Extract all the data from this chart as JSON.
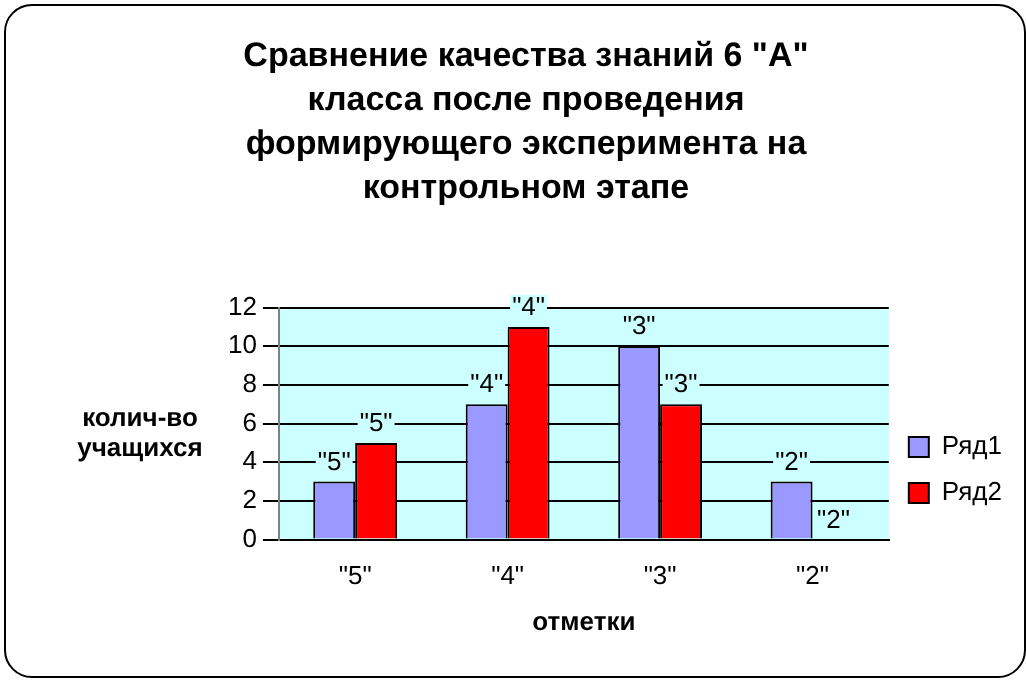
{
  "chart_data": {
    "type": "bar",
    "title": "Сравнение качества знаний 6 \"А\" класса после проведения формирующего эксперимента на контрольном этапе",
    "xlabel": "отметки",
    "ylabel": "колич-во учащихся",
    "categories": [
      "\"5\"",
      "\"4\"",
      "\"3\"",
      "\"2\""
    ],
    "series": [
      {
        "name": "Ряд1",
        "color": "#9999ff",
        "values": [
          3,
          7,
          10,
          3
        ]
      },
      {
        "name": "Ряд2",
        "color": "#ff0000",
        "values": [
          5,
          11,
          7,
          0
        ]
      }
    ],
    "annotations": [
      {
        "text": "\"5\"",
        "x": "\"5\"",
        "y": 3
      },
      {
        "text": "\"4\"",
        "x": "\"4\"",
        "y": 7
      },
      {
        "text": "\"3\"",
        "x": "\"3\"",
        "y": 10
      },
      {
        "text": "\"2\"",
        "x": "\"2\"",
        "y": 3
      },
      {
        "text": "\"5\"",
        "x": "\"5\"",
        "y": 5
      },
      {
        "text": "\"4\"",
        "x": "\"4\"",
        "y": 11
      },
      {
        "text": "\"3\"",
        "x": "\"3\"",
        "y": 7
      },
      {
        "text": "\"2\"",
        "x": "\"2\"",
        "y": 0
      }
    ],
    "ylim": [
      0,
      12
    ],
    "yticks": [
      0,
      2,
      4,
      6,
      8,
      10,
      12
    ],
    "grid": "y",
    "legend": "right"
  }
}
